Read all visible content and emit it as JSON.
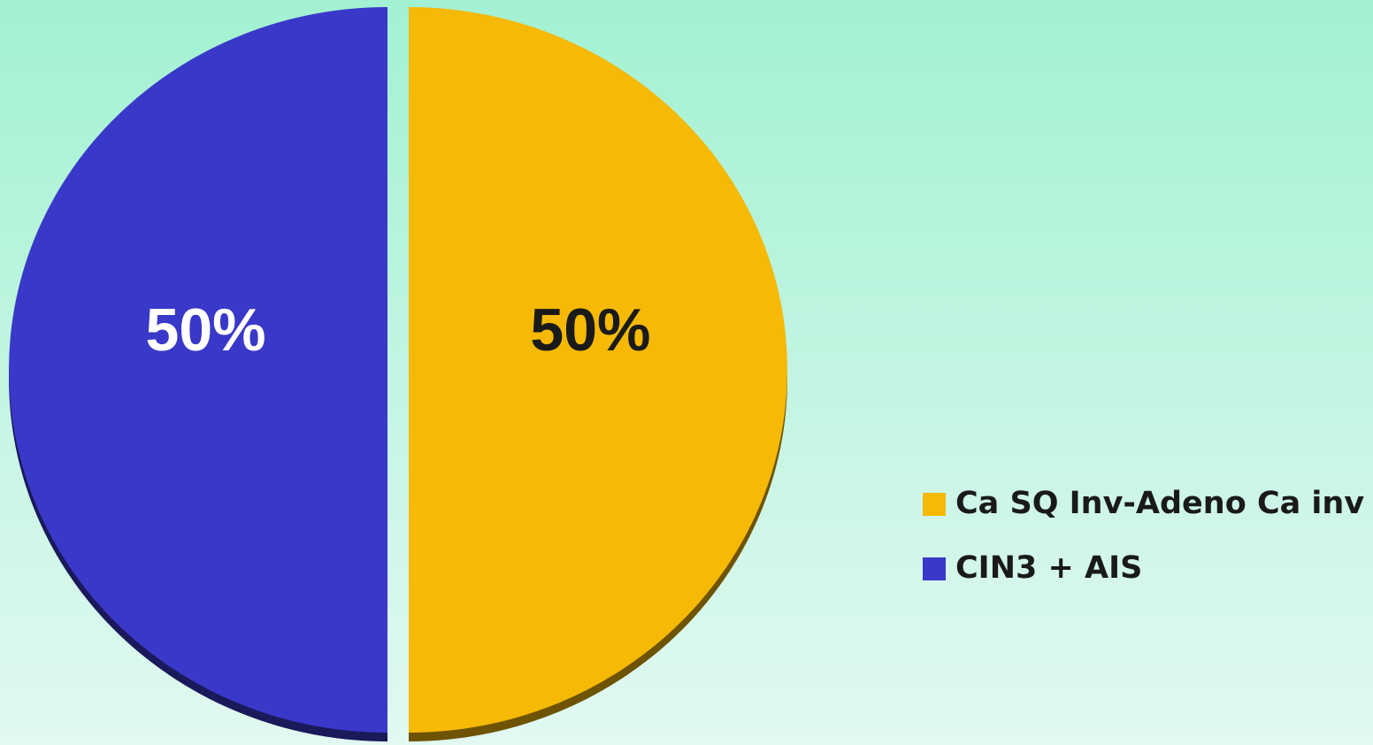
{
  "chart_data": {
    "type": "pie",
    "categories": [
      "Ca SQ Inv-Adeno Ca inv",
      "CIN3 + AIS"
    ],
    "values": [
      50,
      50
    ],
    "value_labels": [
      "50%",
      "50%"
    ],
    "colors": [
      "#f5b906",
      "#3a38c8"
    ],
    "label_colors": [
      "#1a1a1a",
      "#ffffff"
    ],
    "legend": "right"
  }
}
